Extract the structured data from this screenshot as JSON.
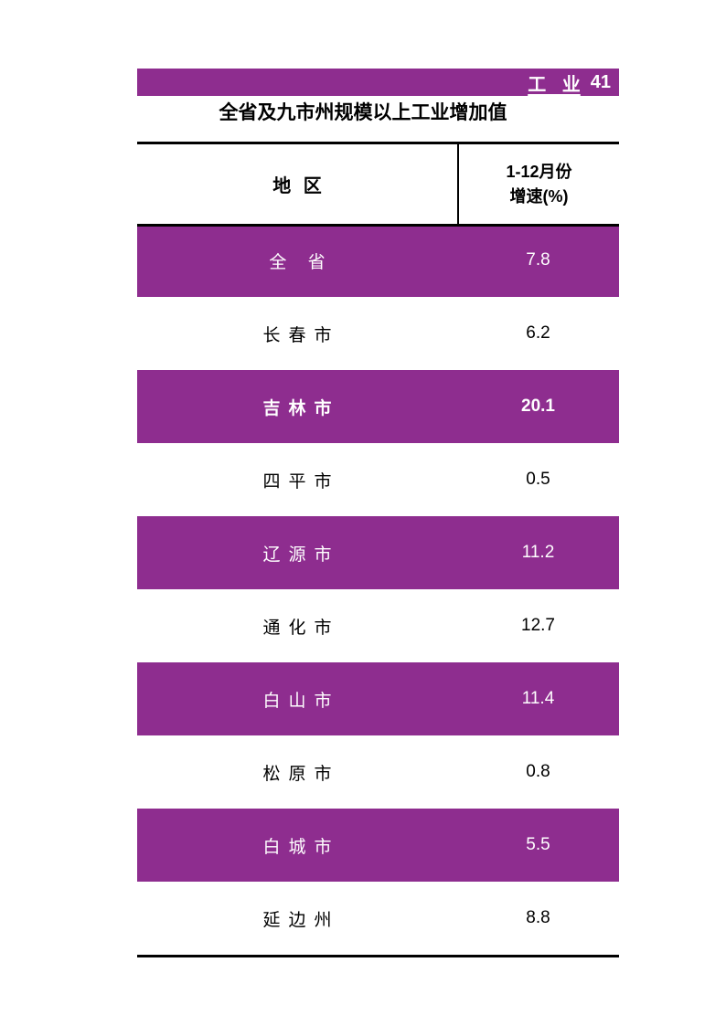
{
  "header_bar": {
    "section_label": "工 业",
    "page_number": "41"
  },
  "title": "全省及九市州规模以上工业增加值",
  "table": {
    "header": {
      "region_label": "地 区",
      "value_label_line1": "1-12月份",
      "value_label_line2": "增速(%)"
    },
    "rows": [
      {
        "region": "全 省",
        "value": "7.8",
        "highlight": true,
        "bold": false
      },
      {
        "region": "长春市",
        "value": "6.2",
        "highlight": false,
        "bold": false
      },
      {
        "region": "吉林市",
        "value": "20.1",
        "highlight": true,
        "bold": true
      },
      {
        "region": "四平市",
        "value": "0.5",
        "highlight": false,
        "bold": false
      },
      {
        "region": "辽源市",
        "value": "11.2",
        "highlight": true,
        "bold": false
      },
      {
        "region": "通化市",
        "value": "12.7",
        "highlight": false,
        "bold": false
      },
      {
        "region": "白山市",
        "value": "11.4",
        "highlight": true,
        "bold": false
      },
      {
        "region": "松原市",
        "value": "0.8",
        "highlight": false,
        "bold": false
      },
      {
        "region": "白城市",
        "value": "5.5",
        "highlight": true,
        "bold": false
      },
      {
        "region": "延边州",
        "value": "8.8",
        "highlight": false,
        "bold": false
      }
    ]
  },
  "colors": {
    "accent_purple": "#8E2D8F",
    "rule_black": "#000000",
    "text_on_accent": "#FFFFFF"
  }
}
